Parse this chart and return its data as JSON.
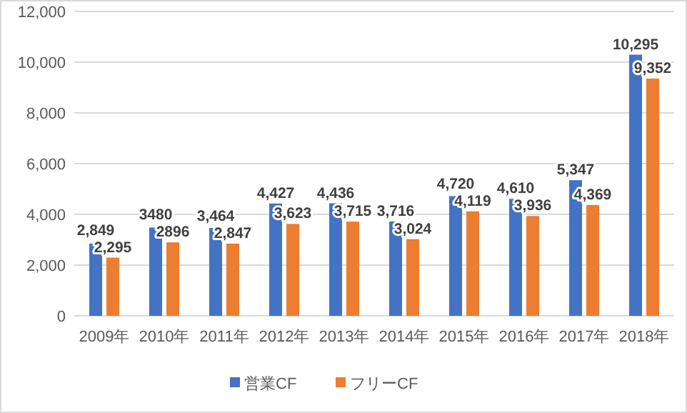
{
  "chart_data": {
    "type": "bar",
    "categories": [
      "2009年",
      "2010年",
      "2011年",
      "2012年",
      "2013年",
      "2014年",
      "2015年",
      "2016年",
      "2017年",
      "2018年"
    ],
    "series": [
      {
        "name": "営業CF",
        "color": "#4472c4",
        "values": [
          2849,
          3480,
          3464,
          4427,
          4436,
          3716,
          4720,
          4610,
          5347,
          10295
        ],
        "value_labels": [
          "2,849",
          "3480",
          "3,464",
          "4,427",
          "4,436",
          "3,716",
          "4,720",
          "4,610",
          "5,347",
          "10,295"
        ]
      },
      {
        "name": "フリーCF",
        "color": "#ed7d31",
        "values": [
          2295,
          2896,
          2847,
          3623,
          3715,
          3024,
          4119,
          3936,
          4369,
          9352
        ],
        "value_labels": [
          "2,295",
          "2896",
          "2,847",
          "3,623",
          "3,715",
          "3,024",
          "4,119",
          "3,936",
          "4,369",
          "9,352"
        ]
      }
    ],
    "ylim": [
      0,
      12000
    ],
    "yticks": [
      {
        "value": 0,
        "label": "0"
      },
      {
        "value": 2000,
        "label": "2,000"
      },
      {
        "value": 4000,
        "label": "4,000"
      },
      {
        "value": 6000,
        "label": "6,000"
      },
      {
        "value": 8000,
        "label": "8,000"
      },
      {
        "value": 10000,
        "label": "10,000"
      },
      {
        "value": 12000,
        "label": "12,000"
      }
    ],
    "grid": "y",
    "legend": "bottom"
  }
}
